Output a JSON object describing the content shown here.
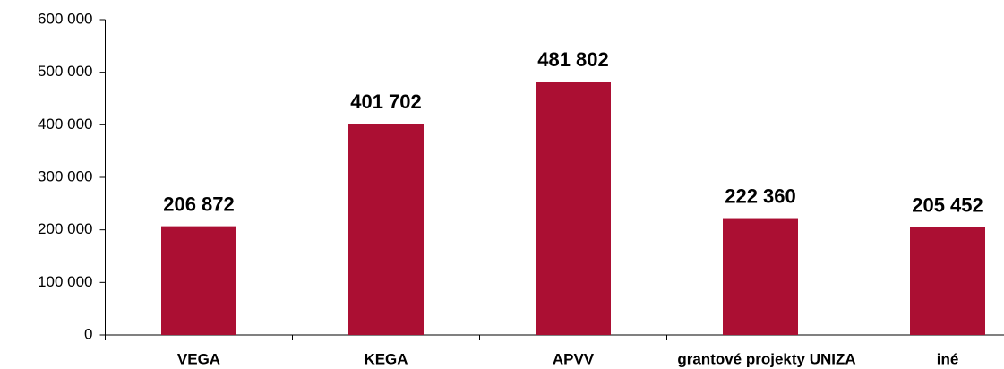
{
  "chart_data": {
    "type": "bar",
    "categories": [
      "VEGA",
      "KEGA",
      "APVV",
      "grantové projekty UNIZA",
      "iné"
    ],
    "values": [
      206872,
      401702,
      481802,
      222360,
      205452
    ],
    "value_labels": [
      "206 872",
      "401 702",
      "481 802",
      "222 360",
      "205 452"
    ],
    "color": "#ab0f33",
    "ylim": [
      0,
      600000
    ],
    "yticks": [
      0,
      {
        "value": 100000,
        "label": "100 000"
      },
      {
        "value": 200000,
        "label": "200 000"
      },
      {
        "value": 300000,
        "label": "300 000"
      },
      {
        "value": 400000,
        "label": "400 000"
      },
      {
        "value": 500000,
        "label": "500 000"
      },
      {
        "value": 600000,
        "label": "600 000"
      }
    ],
    "grid": false
  }
}
